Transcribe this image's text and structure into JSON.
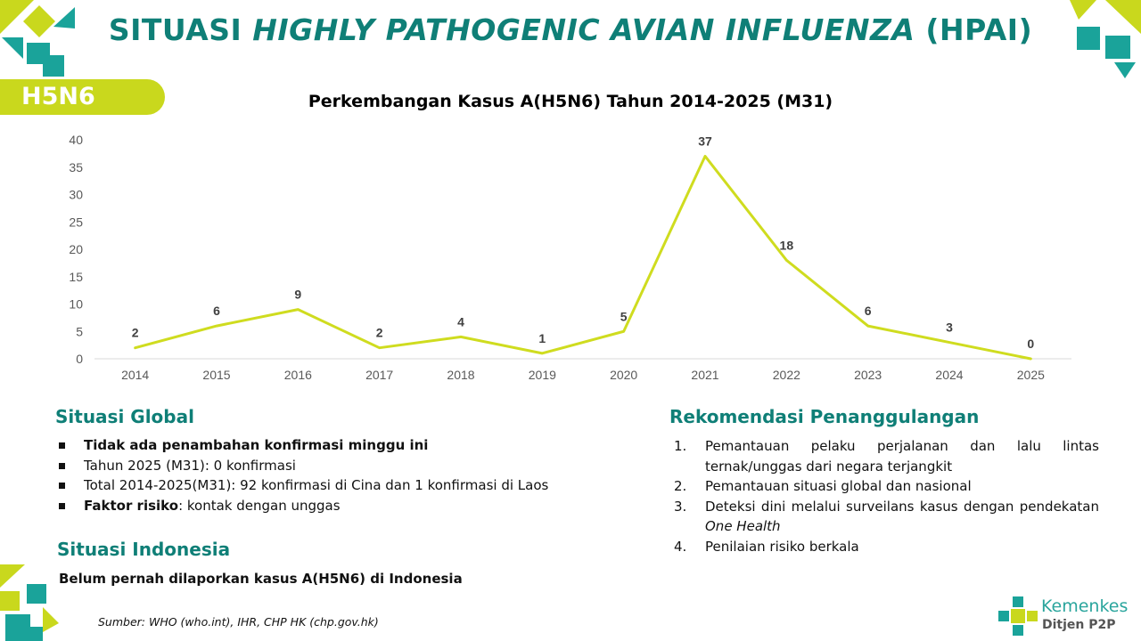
{
  "header": {
    "title_prefix": "SITUASI ",
    "title_italic": "HIGHLY PATHOGENIC AVIAN INFLUENZA",
    "title_suffix": " (HPAI)"
  },
  "tag": "H5N6",
  "chart_data": {
    "type": "line",
    "title": "Perkembangan Kasus A(H5N6) Tahun 2014-2025 (M31)",
    "categories": [
      "2014",
      "2015",
      "2016",
      "2017",
      "2018",
      "2019",
      "2020",
      "2021",
      "2022",
      "2023",
      "2024",
      "2025"
    ],
    "values": [
      2,
      6,
      9,
      2,
      4,
      1,
      5,
      37,
      18,
      6,
      3,
      0
    ],
    "y_ticks": [
      "0",
      "5",
      "10",
      "15",
      "20",
      "25",
      "30",
      "35",
      "40"
    ],
    "ylim": [
      0,
      40
    ],
    "xlabel": "",
    "ylabel": "",
    "grid": false,
    "line_color": "#cfdc1f",
    "data_labels": true
  },
  "global": {
    "heading": "Situasi Global",
    "bullets": [
      {
        "bold": "Tidak ada penambahan konfirmasi minggu ini",
        "rest": ""
      },
      {
        "bold": "",
        "rest": "Tahun 2025 (M31): 0 konfirmasi"
      },
      {
        "bold": "",
        "rest": "Total 2014-2025(M31): 92 konfirmasi di Cina dan 1 konfirmasi di Laos"
      },
      {
        "bold": "Faktor risiko",
        "rest": ": kontak dengan unggas"
      }
    ]
  },
  "indonesia": {
    "heading": "Situasi Indonesia",
    "text": "Belum pernah dilaporkan kasus A(H5N6) di Indonesia"
  },
  "rekomendasi": {
    "heading": "Rekomendasi Penanggulangan",
    "items": [
      {
        "num": "1.",
        "text": "Pemantauan pelaku perjalanan dan lalu lintas ternak/unggas dari negara terjangkit",
        "italic": ""
      },
      {
        "num": "2.",
        "text": "Pemantauan situasi global dan nasional",
        "italic": ""
      },
      {
        "num": "3.",
        "text": "Deteksi dini melalui surveilans kasus dengan pendekatan ",
        "italic": "One Health"
      },
      {
        "num": "4.",
        "text": "Penilaian risiko berkala",
        "italic": ""
      }
    ]
  },
  "source": "Sumber: WHO (who.int), IHR, CHP HK (chp.gov.hk)",
  "logo": {
    "name": "Kemenkes",
    "sub": "Ditjen P2P"
  },
  "colors": {
    "teal": "#0f7f77",
    "lime": "#c9d81d",
    "line": "#cfdc1f"
  }
}
